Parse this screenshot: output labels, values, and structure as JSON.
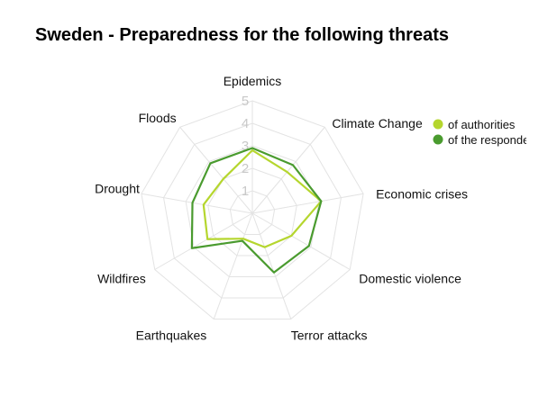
{
  "chart_data": {
    "type": "radar",
    "title": "Sweden - Preparedness for the following threats",
    "categories": [
      "Epidemics",
      "Climate Change",
      "Economic crises",
      "Domestic violence",
      "Terror attacks",
      "Earthquakes",
      "Wildfires",
      "Drought",
      "Floods"
    ],
    "rlim": [
      0,
      5
    ],
    "ticks": [
      "1",
      "2",
      "3",
      "4",
      "5"
    ],
    "grid": true,
    "legend": "top-right",
    "series": [
      {
        "name": "of authorities",
        "color": "#b5d62e",
        "values": [
          2.8,
          2.4,
          3.1,
          2.0,
          1.6,
          1.2,
          2.3,
          2.2,
          2.0
        ]
      },
      {
        "name": "of the respondents",
        "color": "#4a9b2f",
        "values": [
          2.9,
          2.8,
          3.1,
          2.9,
          2.8,
          1.3,
          3.1,
          2.7,
          2.9
        ]
      }
    ]
  }
}
